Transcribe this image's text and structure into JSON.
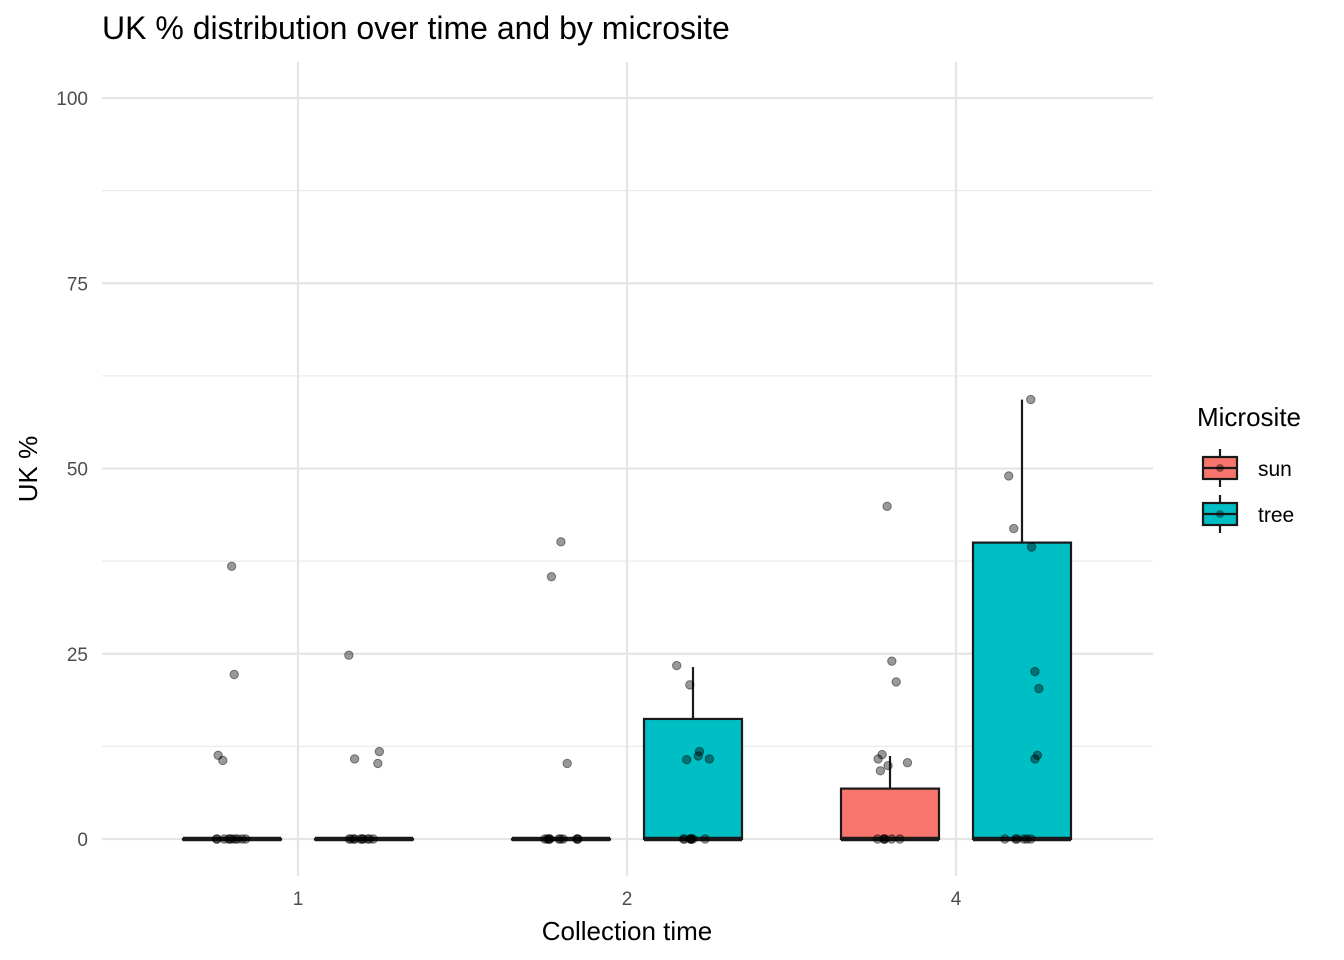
{
  "chart_data": {
    "type": "boxplot",
    "title": "UK % distribution over time and by microsite",
    "xlabel": "Collection time",
    "ylabel": "UK %",
    "categories": [
      "1",
      "2",
      "4"
    ],
    "ylim": [
      -4,
      104
    ],
    "y_ticks": [
      0,
      25,
      50,
      75,
      100
    ],
    "grid": true,
    "legend": {
      "title": "Microsite",
      "placement": "right"
    },
    "series": [
      {
        "name": "sun",
        "color": "#F8766D",
        "boxes": [
          {
            "category": "1",
            "min": 0,
            "q1": 0,
            "median": 0,
            "q3": 0,
            "max": 0
          },
          {
            "category": "2",
            "min": 0,
            "q1": 0,
            "median": 0,
            "q3": 0,
            "max": 0
          },
          {
            "category": "4",
            "min": 0,
            "q1": 0,
            "median": 0,
            "q3": 6.8,
            "max": 11.2
          }
        ],
        "points": [
          {
            "category": "1",
            "y": [
              36.8,
              22.2,
              11.3,
              10.6,
              0,
              0,
              0,
              0,
              0,
              0,
              0,
              0,
              0,
              0
            ]
          },
          {
            "category": "2",
            "y": [
              40.1,
              35.4,
              10.2,
              0,
              0,
              0,
              0,
              0,
              0,
              0,
              0,
              0,
              0,
              0
            ]
          },
          {
            "category": "4",
            "y": [
              44.9,
              24.0,
              21.2,
              11.4,
              10.8,
              10.3,
              9.9,
              9.2,
              0,
              0,
              0,
              0,
              0,
              0
            ]
          }
        ]
      },
      {
        "name": "tree",
        "color": "#00BFC4",
        "boxes": [
          {
            "category": "1",
            "min": 0,
            "q1": 0,
            "median": 0,
            "q3": 0,
            "max": 0
          },
          {
            "category": "2",
            "min": 0,
            "q1": 0,
            "median": 0,
            "q3": 16.2,
            "max": 23.2
          },
          {
            "category": "4",
            "min": 0,
            "q1": 0,
            "median": 0,
            "q3": 40.0,
            "max": 59.3
          }
        ],
        "points": [
          {
            "category": "1",
            "y": [
              24.8,
              11.8,
              10.8,
              10.2,
              0,
              0,
              0,
              0,
              0,
              0,
              0,
              0,
              0,
              0
            ]
          },
          {
            "category": "2",
            "y": [
              23.4,
              20.8,
              11.8,
              11.2,
              10.8,
              10.7,
              0,
              0,
              0,
              0,
              0,
              0,
              0,
              0
            ]
          },
          {
            "category": "4",
            "y": [
              59.3,
              49.0,
              41.9,
              39.4,
              22.6,
              20.3,
              11.3,
              10.8,
              0,
              0,
              0,
              0,
              0,
              0
            ]
          }
        ]
      }
    ]
  }
}
